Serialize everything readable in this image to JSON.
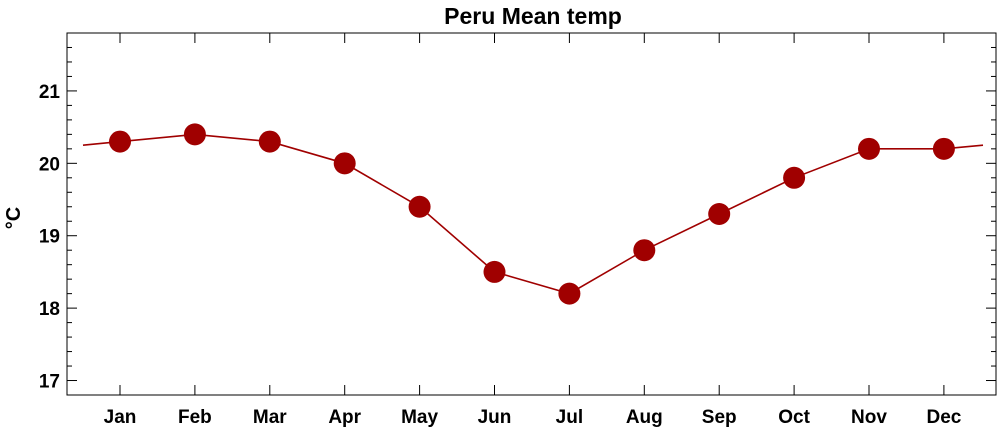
{
  "chart_data": {
    "type": "line",
    "title": "Peru Mean temp",
    "xlabel": "",
    "ylabel": "°C",
    "categories": [
      "Jan",
      "Feb",
      "Mar",
      "Apr",
      "May",
      "Jun",
      "Jul",
      "Aug",
      "Sep",
      "Oct",
      "Nov",
      "Dec"
    ],
    "series": [
      {
        "values": [
          20.3,
          20.4,
          20.3,
          20.0,
          19.4,
          18.5,
          18.2,
          18.8,
          19.3,
          19.8,
          20.2,
          20.2
        ],
        "color": "#a00000",
        "marker": "circle"
      }
    ],
    "yticks": [
      17,
      18,
      19,
      20,
      21
    ],
    "ylim": [
      16.8,
      21.8
    ],
    "grid": false,
    "legend": "none",
    "line_wraps_around_year": true
  }
}
